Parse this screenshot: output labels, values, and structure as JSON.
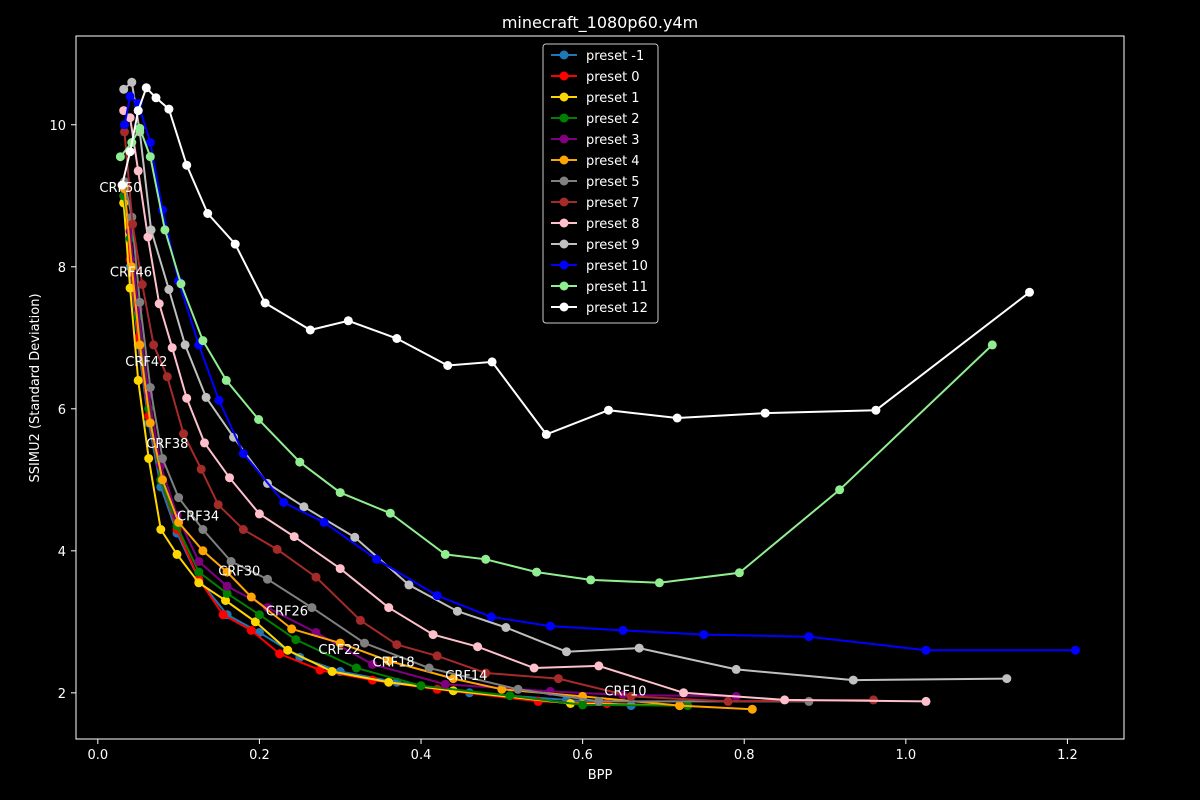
{
  "chart_data": {
    "type": "line",
    "title": "minecraft_1080p60.y4m",
    "xlabel": "BPP",
    "ylabel": "SSIMU2 (Standard Deviation)",
    "xlim": [
      -0.027,
      1.27
    ],
    "ylim": [
      1.35,
      11.25
    ],
    "xticks": [
      0.0,
      0.2,
      0.4,
      0.6,
      0.8,
      1.0,
      1.2
    ],
    "xtick_labels": [
      "0.0",
      "0.2",
      "0.4",
      "0.6",
      "0.8",
      "1.0",
      "1.2"
    ],
    "yticks": [
      2,
      4,
      6,
      8,
      10
    ],
    "ytick_labels": [
      "2",
      "4",
      "6",
      "8",
      "10"
    ],
    "grid": false,
    "legend_position": "top-center",
    "series": [
      {
        "name": "preset -1",
        "color": "#1f77b4",
        "x": [
          0.032,
          0.04,
          0.05,
          0.063,
          0.078,
          0.098,
          0.125,
          0.16,
          0.2,
          0.25,
          0.3,
          0.37,
          0.46,
          0.58,
          0.66
        ],
        "y": [
          8.9,
          8.0,
          6.9,
          5.8,
          4.9,
          4.25,
          3.6,
          3.1,
          2.85,
          2.5,
          2.3,
          2.15,
          2.0,
          1.9,
          1.82
        ]
      },
      {
        "name": "preset 0",
        "color": "#ff0000",
        "x": [
          0.032,
          0.04,
          0.05,
          0.063,
          0.078,
          0.098,
          0.125,
          0.155,
          0.19,
          0.225,
          0.275,
          0.34,
          0.42,
          0.545,
          0.63
        ],
        "y": [
          9.0,
          8.1,
          7.0,
          5.9,
          5.0,
          4.3,
          3.6,
          3.1,
          2.88,
          2.55,
          2.32,
          2.18,
          2.05,
          1.88,
          1.85
        ]
      },
      {
        "name": "preset 1",
        "color": "#ffd700",
        "x": [
          0.032,
          0.04,
          0.05,
          0.063,
          0.078,
          0.098,
          0.125,
          0.158,
          0.195,
          0.235,
          0.29,
          0.36,
          0.44,
          0.585,
          0.72
        ],
        "y": [
          8.9,
          7.7,
          6.4,
          5.3,
          4.3,
          3.95,
          3.55,
          3.3,
          3.0,
          2.6,
          2.3,
          2.15,
          2.03,
          1.85,
          1.82
        ]
      },
      {
        "name": "preset 2",
        "color": "#008000",
        "x": [
          0.032,
          0.04,
          0.05,
          0.063,
          0.078,
          0.098,
          0.125,
          0.16,
          0.2,
          0.245,
          0.32,
          0.4,
          0.51,
          0.6,
          0.73
        ],
        "y": [
          9.0,
          8.4,
          7.3,
          6.0,
          5.0,
          4.35,
          3.7,
          3.4,
          3.1,
          2.75,
          2.35,
          2.1,
          1.96,
          1.83,
          1.82
        ]
      },
      {
        "name": "preset 3",
        "color": "#800080",
        "x": [
          0.032,
          0.04,
          0.05,
          0.063,
          0.078,
          0.098,
          0.125,
          0.16,
          0.21,
          0.27,
          0.34,
          0.43,
          0.56,
          0.65,
          0.79
        ],
        "y": [
          9.1,
          8.5,
          7.4,
          6.2,
          5.2,
          4.5,
          3.85,
          3.5,
          3.2,
          2.85,
          2.4,
          2.12,
          2.02,
          1.97,
          1.95
        ]
      },
      {
        "name": "preset 4",
        "color": "#ffa500",
        "x": [
          0.033,
          0.042,
          0.052,
          0.065,
          0.08,
          0.1,
          0.13,
          0.16,
          0.19,
          0.24,
          0.3,
          0.36,
          0.44,
          0.5,
          0.6,
          0.72,
          0.81
        ],
        "y": [
          9.1,
          8.0,
          6.9,
          5.8,
          5.0,
          4.4,
          4.0,
          3.7,
          3.35,
          2.9,
          2.7,
          2.45,
          2.2,
          2.05,
          1.95,
          1.82,
          1.77
        ]
      },
      {
        "name": "preset 5",
        "color": "#808080",
        "x": [
          0.033,
          0.042,
          0.052,
          0.065,
          0.08,
          0.1,
          0.13,
          0.165,
          0.21,
          0.265,
          0.33,
          0.41,
          0.52,
          0.62,
          0.88
        ],
        "y": [
          9.2,
          8.7,
          7.5,
          6.3,
          5.3,
          4.75,
          4.3,
          3.85,
          3.6,
          3.2,
          2.7,
          2.35,
          2.05,
          1.88,
          1.88
        ]
      },
      {
        "name": "preset 7",
        "color": "#a52a2a",
        "x": [
          0.033,
          0.043,
          0.055,
          0.069,
          0.086,
          0.106,
          0.128,
          0.149,
          0.18,
          0.222,
          0.27,
          0.325,
          0.37,
          0.42,
          0.48,
          0.57,
          0.66,
          0.78,
          0.96
        ],
        "y": [
          9.9,
          8.6,
          7.75,
          6.9,
          6.45,
          5.65,
          5.15,
          4.65,
          4.3,
          4.02,
          3.63,
          3.02,
          2.68,
          2.52,
          2.28,
          2.2,
          1.95,
          1.88,
          1.9
        ]
      },
      {
        "name": "preset 8",
        "color": "#ffc0cb",
        "x": [
          0.032,
          0.04,
          0.05,
          0.062,
          0.076,
          0.092,
          0.11,
          0.132,
          0.163,
          0.2,
          0.243,
          0.3,
          0.36,
          0.415,
          0.47,
          0.54,
          0.62,
          0.725,
          0.85,
          1.025
        ],
        "y": [
          10.2,
          10.1,
          9.35,
          8.42,
          7.48,
          6.86,
          6.15,
          5.52,
          5.03,
          4.52,
          4.2,
          3.75,
          3.2,
          2.82,
          2.65,
          2.35,
          2.38,
          2.0,
          1.9,
          1.88
        ]
      },
      {
        "name": "preset 9",
        "color": "#c0c0c0",
        "x": [
          0.032,
          0.042,
          0.052,
          0.066,
          0.088,
          0.108,
          0.134,
          0.168,
          0.21,
          0.255,
          0.318,
          0.385,
          0.445,
          0.505,
          0.58,
          0.67,
          0.79,
          0.935,
          1.125
        ],
        "y": [
          10.5,
          10.6,
          9.9,
          8.52,
          7.68,
          6.9,
          6.16,
          5.6,
          4.95,
          4.62,
          4.19,
          3.52,
          3.15,
          2.92,
          2.58,
          2.63,
          2.33,
          2.18,
          2.2
        ]
      },
      {
        "name": "preset 10",
        "color": "#0000ff",
        "x": [
          0.033,
          0.04,
          0.05,
          0.065,
          0.08,
          0.1,
          0.125,
          0.15,
          0.18,
          0.23,
          0.28,
          0.345,
          0.42,
          0.487,
          0.56,
          0.65,
          0.75,
          0.88,
          1.025,
          1.21
        ],
        "y": [
          10.0,
          10.4,
          10.3,
          9.75,
          8.8,
          7.8,
          6.9,
          6.12,
          5.37,
          4.68,
          4.4,
          3.88,
          3.37,
          3.07,
          2.94,
          2.88,
          2.82,
          2.79,
          2.6,
          2.6
        ]
      },
      {
        "name": "preset 11",
        "color": "#90ee90",
        "x": [
          0.028,
          0.042,
          0.052,
          0.065,
          0.083,
          0.103,
          0.13,
          0.159,
          0.199,
          0.25,
          0.3,
          0.362,
          0.43,
          0.48,
          0.543,
          0.61,
          0.695,
          0.794,
          0.918,
          1.107
        ],
        "y": [
          9.55,
          9.75,
          9.95,
          9.55,
          8.52,
          7.76,
          6.96,
          6.4,
          5.85,
          5.25,
          4.82,
          4.53,
          3.95,
          3.88,
          3.7,
          3.59,
          3.55,
          3.69,
          4.86,
          6.9
        ]
      },
      {
        "name": "preset 12",
        "color": "#ffffff",
        "x": [
          0.03,
          0.04,
          0.05,
          0.06,
          0.072,
          0.088,
          0.11,
          0.136,
          0.17,
          0.207,
          0.263,
          0.31,
          0.37,
          0.433,
          0.488,
          0.555,
          0.632,
          0.717,
          0.826,
          0.963,
          1.153
        ],
        "y": [
          9.15,
          9.62,
          10.2,
          10.52,
          10.38,
          10.22,
          9.43,
          8.75,
          8.32,
          7.49,
          7.11,
          7.24,
          6.99,
          6.61,
          6.66,
          5.64,
          5.98,
          5.87,
          5.94,
          5.98,
          7.64
        ]
      }
    ],
    "annotations": [
      {
        "text": "CRF50",
        "x": 0.002,
        "y": 9.05
      },
      {
        "text": "CRF46",
        "x": 0.015,
        "y": 7.86
      },
      {
        "text": "CRF42",
        "x": 0.034,
        "y": 6.6
      },
      {
        "text": "CRF38",
        "x": 0.06,
        "y": 5.45
      },
      {
        "text": "CRF34",
        "x": 0.098,
        "y": 4.43
      },
      {
        "text": "CRF30",
        "x": 0.149,
        "y": 3.65
      },
      {
        "text": "CRF26",
        "x": 0.208,
        "y": 3.09
      },
      {
        "text": "CRF22",
        "x": 0.273,
        "y": 2.55
      },
      {
        "text": "CRF18",
        "x": 0.34,
        "y": 2.37
      },
      {
        "text": "CRF14",
        "x": 0.43,
        "y": 2.18
      },
      {
        "text": "CRF10",
        "x": 0.627,
        "y": 1.96
      }
    ]
  }
}
